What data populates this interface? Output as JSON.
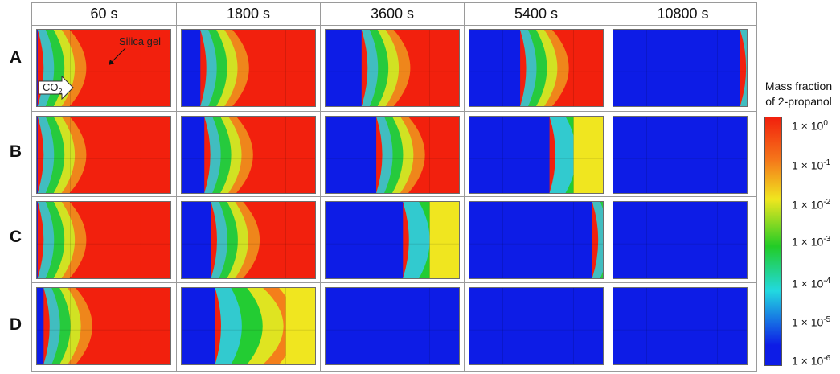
{
  "columns": [
    "60 s",
    "1800 s",
    "3600 s",
    "5400 s",
    "10800 s"
  ],
  "rows": [
    "A",
    "B",
    "C",
    "D"
  ],
  "annotations": {
    "silica_gel": "Silica gel",
    "co2": "CO",
    "co2_sub": "2"
  },
  "colorbar": {
    "title_line1": "Mass fraction",
    "title_line2": "of 2-propanol",
    "tick_prefix": "1 × 10",
    "exponents": [
      "0",
      "-1",
      "-2",
      "-3",
      "-4",
      "-5",
      "-6"
    ]
  },
  "colors": {
    "red": "#f2200d",
    "orange": "#f5761a",
    "yellow": "#f0e61f",
    "green": "#22cc26",
    "cyan": "#22d9e0",
    "blue": "#0d1ce6"
  },
  "panels": [
    [
      {
        "front": 0.005,
        "depletion": 1.0
      },
      {
        "front": 0.14,
        "depletion": 1.0
      },
      {
        "front": 0.27,
        "depletion": 1.0
      },
      {
        "front": 0.38,
        "depletion": 1.0
      },
      {
        "front": 0.95,
        "depletion": 1.0
      }
    ],
    [
      {
        "front": 0.005,
        "depletion": 1.0
      },
      {
        "front": 0.17,
        "depletion": 1.0
      },
      {
        "front": 0.38,
        "depletion": 1.0
      },
      {
        "front": 0.6,
        "depletion": 0.75
      },
      {
        "front": 1.0,
        "depletion": 1.0
      }
    ],
    [
      {
        "front": 0.005,
        "depletion": 1.0
      },
      {
        "front": 0.22,
        "depletion": 1.0
      },
      {
        "front": 0.58,
        "depletion": 0.85
      },
      {
        "front": 0.92,
        "depletion": 1.0
      },
      {
        "front": 1.0,
        "depletion": 1.0
      }
    ],
    [
      {
        "front": 0.05,
        "depletion": 1.0
      },
      {
        "front": 0.25,
        "depletion": 0.45
      },
      {
        "front": 1.0,
        "depletion": 1.0
      },
      {
        "front": 1.0,
        "depletion": 1.0
      },
      {
        "front": 1.0,
        "depletion": 1.0
      }
    ]
  ]
}
